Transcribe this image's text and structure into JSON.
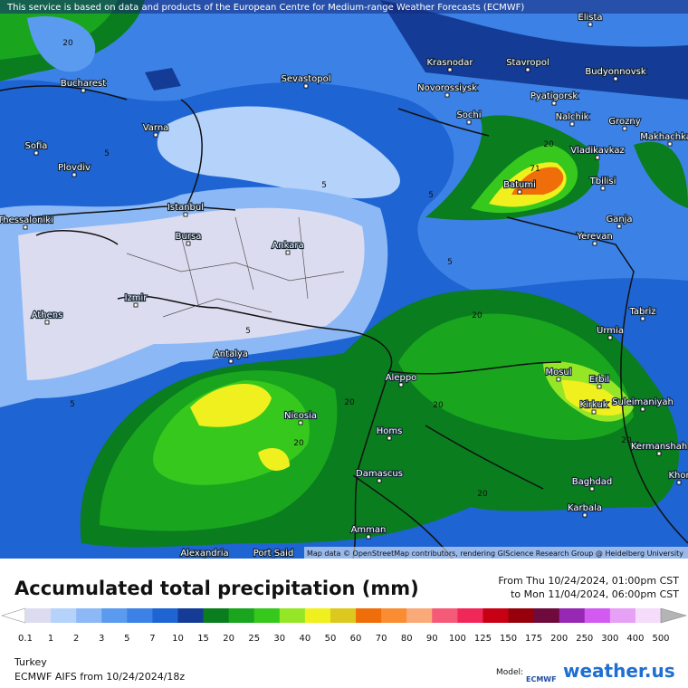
{
  "notice": "This service is based on data and products of the European Centre for Medium-range Weather Forecasts (ECMWF)",
  "attribution": "Map data © OpenStreetMap contributors, rendering GIScience Research Group @ Heidelberg University",
  "cities": [
    "Elista",
    "Krasnodar",
    "Stavropol",
    "Budyonnovsk",
    "Bucharest",
    "Sevastopol",
    "Novorossiysk",
    "Pyatigorsk",
    "Nalchik",
    "Grozny",
    "Sochi",
    "Varna",
    "Makhachkala",
    "Sofia",
    "Vladikavkaz",
    "Plovdiv",
    "Tbilisi",
    "Batumi",
    "Istanbul",
    "Ganja",
    "Thessaloniki",
    "Yerevan",
    "Bursa",
    "Ankara",
    "Izmir",
    "Tabriz",
    "Athens",
    "Urmia",
    "Antalya",
    "Mosul",
    "Aleppo",
    "Erbil",
    "Suleimaniyah",
    "Kirkuk",
    "Nicosia",
    "Homs",
    "Kermanshah",
    "Khor",
    "Damascus",
    "Baghdad",
    "Karbala",
    "Amman",
    "Alexandria",
    "Port Said"
  ],
  "contour_labels": [
    20,
    5,
    5,
    5,
    5,
    5,
    5,
    20,
    71,
    20,
    20,
    20,
    20,
    20,
    20
  ],
  "title": "Accumulated total precipitation (mm)",
  "period_from": "From Thu 10/24/2024, 01:00pm CST",
  "period_to": "to Mon 11/04/2024, 06:00pm CST",
  "legend": {
    "values": [
      0.1,
      1,
      2,
      3,
      5,
      7,
      10,
      15,
      20,
      25,
      30,
      40,
      50,
      60,
      70,
      80,
      90,
      100,
      125,
      150,
      175,
      200,
      250,
      300,
      400,
      500
    ],
    "colors": [
      "#ffffff",
      "#dcdcf0",
      "#b4d2fa",
      "#8cb9f5",
      "#5a9bf0",
      "#3c82e6",
      "#1e64d2",
      "#143c96",
      "#0a7d1e",
      "#19a51e",
      "#37c81e",
      "#96e628",
      "#f0f01e",
      "#dcc81e",
      "#f06e0a",
      "#fa8c32",
      "#faaa78",
      "#f55a78",
      "#f0285a",
      "#c80014",
      "#96000a",
      "#6e0a3c",
      "#9628b4",
      "#d25af0",
      "#e6a0f5",
      "#f5dcfa",
      "#b4b4b4"
    ]
  },
  "region": "Turkey",
  "model_run": "ECMWF AIFS from  10/24/2024/18z",
  "model_label": "Model:",
  "model_name": "ECMWF",
  "brand": "weather.us"
}
